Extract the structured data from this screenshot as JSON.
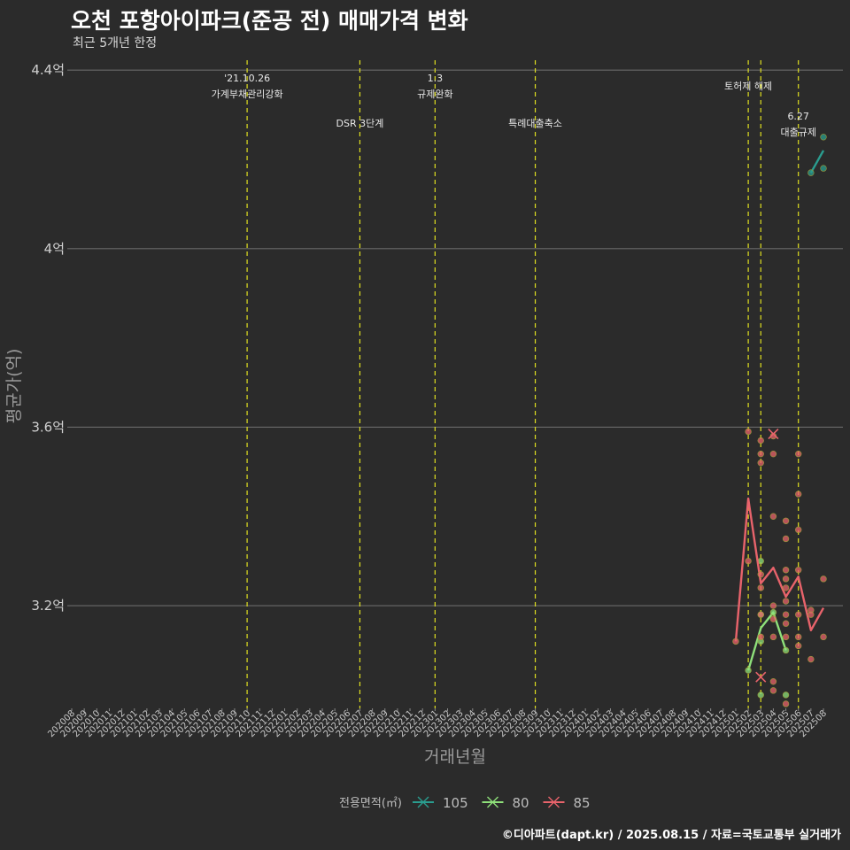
{
  "title": "오천 포항아이파크(준공 전) 매매가격 변화",
  "subtitle": "최근 5개년 한정",
  "caption": "©디아파트(dapt.kr) / 2025.08.15 / 자료=국토교통부 실거래가",
  "chart_data": {
    "type": "line",
    "xlabel": "거래년월",
    "ylabel": "평균가(억)",
    "ylim": [
      2.97,
      4.45
    ],
    "yticks": [
      {
        "v": 3.2,
        "label": "3.2억"
      },
      {
        "v": 3.6,
        "label": "3.6억"
      },
      {
        "v": 4.0,
        "label": "4억"
      },
      {
        "v": 4.4,
        "label": "4.4억"
      }
    ],
    "categories": [
      "202008",
      "202009",
      "202010",
      "202011",
      "202012",
      "202101",
      "202102",
      "202103",
      "202104",
      "202105",
      "202106",
      "202107",
      "202108",
      "202109",
      "202110",
      "202111",
      "202112",
      "202201",
      "202202",
      "202203",
      "202204",
      "202205",
      "202206",
      "202207",
      "202208",
      "202209",
      "202210",
      "202211",
      "202212",
      "202301",
      "202302",
      "202303",
      "202304",
      "202305",
      "202306",
      "202307",
      "202308",
      "202309",
      "202310",
      "202311",
      "202312",
      "202401",
      "202402",
      "202403",
      "202404",
      "202405",
      "202406",
      "202407",
      "202408",
      "202409",
      "202410",
      "202411",
      "202412",
      "202501",
      "202502",
      "202503",
      "202504",
      "202505",
      "202506",
      "202507",
      "202508"
    ],
    "grid": true,
    "legend": {
      "title": "전용면적(㎡)",
      "position": "bottom"
    },
    "events": [
      {
        "month": "202110",
        "lines": [
          "'21.10.26",
          "가계부채관리강화"
        ],
        "row": 0
      },
      {
        "month": "202207",
        "lines": [
          "DSR 3단계"
        ],
        "row": 1
      },
      {
        "month": "202301",
        "lines": [
          "1.3",
          "규제완화"
        ],
        "row": 0
      },
      {
        "month": "202309",
        "lines": [
          "특례대출축소"
        ],
        "row": 1
      },
      {
        "month": "202502",
        "lines": [
          "토허제 해제"
        ],
        "row": 2
      },
      {
        "month": "202503",
        "lines": [],
        "row": 2
      },
      {
        "month": "202506",
        "lines": [
          "6.27",
          "대출규제"
        ],
        "row": 3
      }
    ],
    "series": [
      {
        "name": "105",
        "color": "#2a9d8f",
        "line": [
          {
            "x": "202507",
            "y": 4.17
          },
          {
            "x": "202508",
            "y": 4.22
          }
        ],
        "points": [
          {
            "x": "202507",
            "y": 4.17
          },
          {
            "x": "202508",
            "y": 4.25
          },
          {
            "x": "202508",
            "y": 4.18
          }
        ],
        "crosses": []
      },
      {
        "name": "80",
        "color": "#8ee07a",
        "line": [
          {
            "x": "202502",
            "y": 3.055
          },
          {
            "x": "202503",
            "y": 3.15
          },
          {
            "x": "202504",
            "y": 3.185
          },
          {
            "x": "202505",
            "y": 3.1
          }
        ],
        "points": [
          {
            "x": "202502",
            "y": 3.055
          },
          {
            "x": "202503",
            "y": 3.3
          },
          {
            "x": "202503",
            "y": 3.18
          },
          {
            "x": "202503",
            "y": 3.12
          },
          {
            "x": "202503",
            "y": 3.0
          },
          {
            "x": "202504",
            "y": 3.185
          },
          {
            "x": "202505",
            "y": 3.1
          },
          {
            "x": "202505",
            "y": 3.0
          }
        ],
        "crosses": []
      },
      {
        "name": "85",
        "color": "#e8636b",
        "line": [
          {
            "x": "202501",
            "y": 3.12
          },
          {
            "x": "202502",
            "y": 3.44
          },
          {
            "x": "202503",
            "y": 3.25
          },
          {
            "x": "202504",
            "y": 3.285
          },
          {
            "x": "202505",
            "y": 3.22
          },
          {
            "x": "202506",
            "y": 3.265
          },
          {
            "x": "202507",
            "y": 3.145
          },
          {
            "x": "202508",
            "y": 3.195
          }
        ],
        "points": [
          {
            "x": "202501",
            "y": 3.12
          },
          {
            "x": "202502",
            "y": 3.59
          },
          {
            "x": "202502",
            "y": 3.3
          },
          {
            "x": "202503",
            "y": 3.57
          },
          {
            "x": "202503",
            "y": 3.54
          },
          {
            "x": "202503",
            "y": 3.52
          },
          {
            "x": "202503",
            "y": 3.27
          },
          {
            "x": "202503",
            "y": 3.24
          },
          {
            "x": "202503",
            "y": 3.18
          },
          {
            "x": "202503",
            "y": 3.13
          },
          {
            "x": "202504",
            "y": 3.58
          },
          {
            "x": "202504",
            "y": 3.54
          },
          {
            "x": "202504",
            "y": 3.4
          },
          {
            "x": "202504",
            "y": 3.2
          },
          {
            "x": "202504",
            "y": 3.17
          },
          {
            "x": "202504",
            "y": 3.13
          },
          {
            "x": "202504",
            "y": 3.03
          },
          {
            "x": "202504",
            "y": 3.01
          },
          {
            "x": "202505",
            "y": 3.39
          },
          {
            "x": "202505",
            "y": 3.35
          },
          {
            "x": "202505",
            "y": 3.28
          },
          {
            "x": "202505",
            "y": 3.26
          },
          {
            "x": "202505",
            "y": 3.24
          },
          {
            "x": "202505",
            "y": 3.21
          },
          {
            "x": "202505",
            "y": 3.18
          },
          {
            "x": "202505",
            "y": 3.16
          },
          {
            "x": "202505",
            "y": 3.13
          },
          {
            "x": "202505",
            "y": 2.98
          },
          {
            "x": "202506",
            "y": 3.54
          },
          {
            "x": "202506",
            "y": 3.45
          },
          {
            "x": "202506",
            "y": 3.37
          },
          {
            "x": "202506",
            "y": 3.28
          },
          {
            "x": "202506",
            "y": 3.18
          },
          {
            "x": "202506",
            "y": 3.13
          },
          {
            "x": "202506",
            "y": 3.11
          },
          {
            "x": "202507",
            "y": 3.19
          },
          {
            "x": "202507",
            "y": 3.18
          },
          {
            "x": "202507",
            "y": 3.08
          },
          {
            "x": "202508",
            "y": 3.26
          },
          {
            "x": "202508",
            "y": 3.13
          }
        ],
        "crosses": [
          {
            "x": "202504",
            "y": 3.585
          },
          {
            "x": "202503",
            "y": 3.04
          }
        ]
      }
    ]
  }
}
